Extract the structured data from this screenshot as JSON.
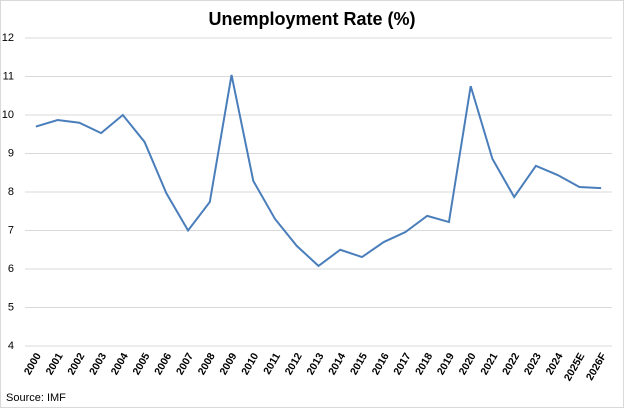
{
  "chart_data": {
    "type": "line",
    "title": "Unemployment Rate (%)",
    "categories": [
      "2000",
      "2001",
      "2002",
      "2003",
      "2004",
      "2005",
      "2006",
      "2007",
      "2008",
      "2009",
      "2010",
      "2011",
      "2012",
      "2013",
      "2014",
      "2015",
      "2016",
      "2017",
      "2018",
      "2019",
      "2020",
      "2021",
      "2022",
      "2023",
      "2024",
      "2025E",
      "2026F"
    ],
    "values": [
      9.7,
      9.87,
      9.8,
      9.53,
      10.0,
      9.3,
      7.97,
      7.0,
      7.74,
      11.04,
      8.29,
      7.3,
      6.6,
      6.08,
      6.5,
      6.31,
      6.7,
      6.96,
      7.38,
      7.22,
      10.75,
      8.86,
      7.87,
      8.68,
      8.44,
      8.13,
      8.1
    ],
    "color": "#4a7ebb",
    "ylim": [
      4,
      12
    ],
    "yticks": [
      4,
      5,
      6,
      7,
      8,
      9,
      10,
      11,
      12
    ],
    "grid": true,
    "source": "Source: IMF"
  }
}
